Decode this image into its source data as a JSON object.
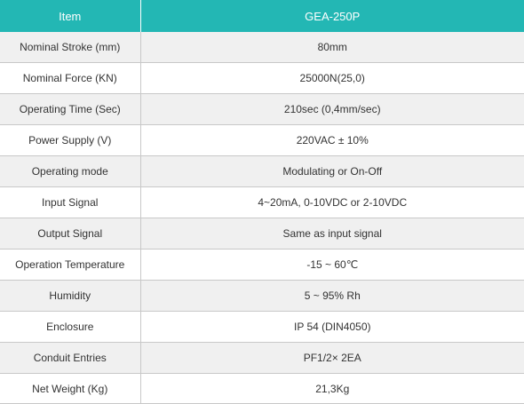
{
  "table": {
    "header": {
      "col1": "Item",
      "col2": "GEA-250P"
    },
    "rows": [
      {
        "item": "Nominal Stroke (mm)",
        "value": "80mm"
      },
      {
        "item": "Nominal Force (KN)",
        "value": "25000N(25,0)"
      },
      {
        "item": "Operating Time (Sec)",
        "value": "210sec (0,4mm/sec)"
      },
      {
        "item": "Power Supply (V)",
        "value": "220VAC ± 10%"
      },
      {
        "item": "Operating mode",
        "value": "Modulating or On-Off"
      },
      {
        "item": "Input Signal",
        "value": "4~20mA, 0-10VDC or 2-10VDC"
      },
      {
        "item": "Output Signal",
        "value": "Same as input signal"
      },
      {
        "item": "Operation Temperature",
        "value": "-15 ~ 60℃"
      },
      {
        "item": "Humidity",
        "value": "5 ~ 95% Rh"
      },
      {
        "item": "Enclosure",
        "value": "IP 54 (DIN4050)"
      },
      {
        "item": "Conduit Entries",
        "value": "PF1/2× 2EA"
      },
      {
        "item": "Net Weight (Kg)",
        "value": "21,3Kg"
      }
    ]
  },
  "colors": {
    "header_bg": "#23b7b4",
    "header_text": "#ffffff",
    "stripe": "#f0f0f0",
    "border": "#c8c8c8"
  }
}
